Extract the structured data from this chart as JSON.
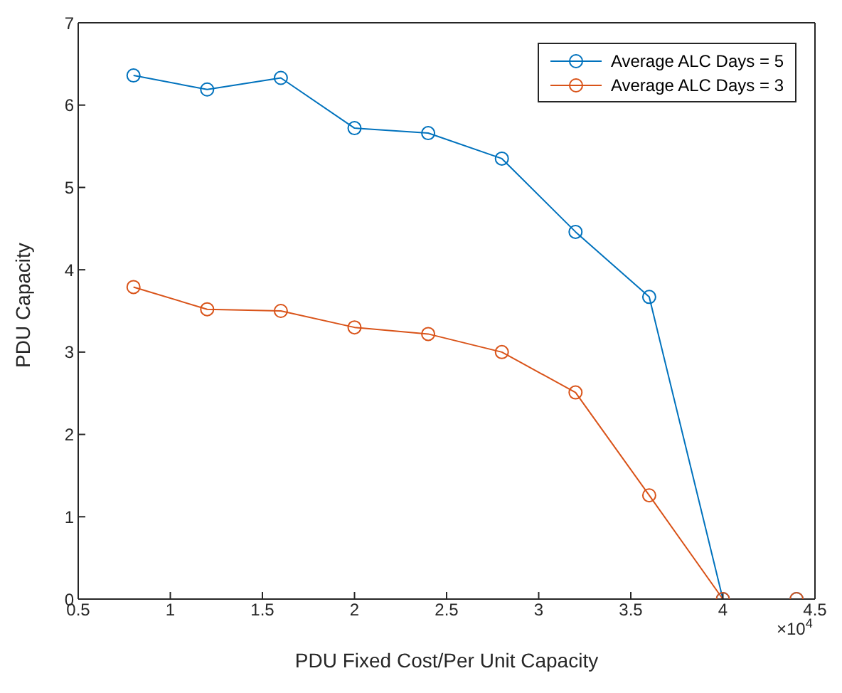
{
  "chart_data": {
    "type": "line",
    "xlabel": "PDU Fixed Cost/Per Unit Capacity",
    "ylabel": "PDU Capacity",
    "x": [
      0.8,
      1.2,
      1.6,
      2.0,
      2.4,
      2.8,
      3.2,
      3.6,
      4.0,
      4.4
    ],
    "series": [
      {
        "name": "Average ALC Days = 5",
        "color": "#0072bd",
        "values": [
          6.36,
          6.19,
          6.33,
          5.72,
          5.66,
          5.35,
          4.46,
          3.67,
          0,
          0
        ]
      },
      {
        "name": "Average ALC Days = 3",
        "color": "#d95319",
        "values": [
          3.79,
          3.52,
          3.5,
          3.3,
          3.22,
          3.0,
          2.51,
          1.26,
          0,
          0
        ]
      }
    ],
    "xlim": [
      0.5,
      4.5
    ],
    "xticks": [
      0.5,
      1,
      1.5,
      2,
      2.5,
      3,
      3.5,
      4,
      4.5
    ],
    "ylim": [
      0,
      7
    ],
    "yticks": [
      0,
      1,
      2,
      3,
      4,
      5,
      6,
      7
    ],
    "annotations": [
      "×10$^{4}$"
    ],
    "legend": "top right",
    "marker": "circle",
    "line_style": "solid"
  }
}
